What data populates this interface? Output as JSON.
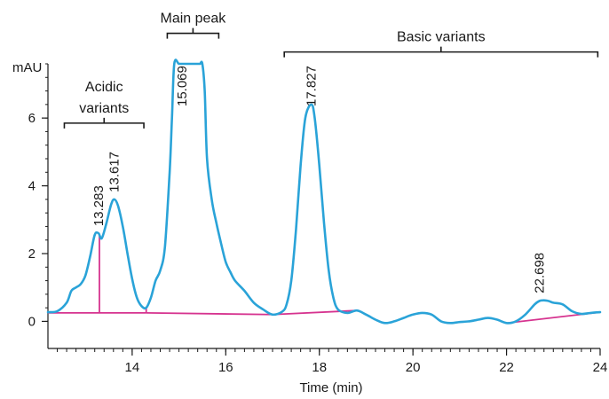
{
  "chart_data": {
    "type": "line",
    "title": "",
    "xlabel": "Time (min)",
    "ylabel": "mAU",
    "xlim": [
      12.2,
      24.0
    ],
    "ylim": [
      -0.8,
      7.6
    ],
    "x_ticks": [
      14,
      16,
      18,
      20,
      22,
      24
    ],
    "y_ticks": [
      0,
      2,
      4,
      6
    ],
    "grid": false,
    "legend": "none",
    "colors": {
      "signal": "#2aa3d8",
      "baseline": "#d6338f",
      "axes": "#1a1a1a",
      "annotations": "#1a1a1a"
    },
    "series": [
      {
        "x": [
          12.2,
          12.4,
          12.6,
          12.7,
          12.8,
          12.9,
          13.0,
          13.1,
          13.2,
          13.28,
          13.35,
          13.45,
          13.55,
          13.62,
          13.7,
          13.8,
          13.9,
          14.0,
          14.1,
          14.2,
          14.3,
          14.4,
          14.5,
          14.6,
          14.7,
          14.8,
          14.85,
          14.9,
          15.0,
          15.1,
          15.2,
          15.3,
          15.4,
          15.45,
          15.5,
          15.55,
          15.6,
          15.7,
          15.8,
          15.9,
          16.0,
          16.1,
          16.2,
          16.4,
          16.6,
          16.8,
          17.0,
          17.2,
          17.3,
          17.4,
          17.5,
          17.6,
          17.7,
          17.83,
          17.9,
          18.0,
          18.1,
          18.2,
          18.3,
          18.4,
          18.6,
          18.8,
          19.0,
          19.2,
          19.4,
          19.6,
          19.8,
          20.0,
          20.2,
          20.4,
          20.6,
          20.8,
          21.0,
          21.2,
          21.4,
          21.6,
          21.8,
          22.0,
          22.2,
          22.4,
          22.6,
          22.7,
          22.8,
          22.9,
          23.0,
          23.2,
          23.4,
          23.6,
          23.8,
          24.0
        ],
        "y": [
          0.27,
          0.3,
          0.55,
          0.9,
          1.0,
          1.1,
          1.35,
          1.9,
          2.55,
          2.6,
          2.45,
          2.9,
          3.45,
          3.6,
          3.4,
          2.8,
          2.0,
          1.25,
          0.7,
          0.45,
          0.4,
          0.7,
          1.2,
          1.5,
          2.2,
          4.4,
          6.0,
          7.6,
          7.6,
          7.6,
          7.6,
          7.6,
          7.6,
          7.6,
          7.6,
          6.8,
          4.8,
          3.6,
          2.9,
          2.3,
          1.75,
          1.45,
          1.2,
          0.9,
          0.55,
          0.35,
          0.2,
          0.28,
          0.5,
          1.2,
          2.7,
          4.6,
          6.0,
          6.4,
          6.0,
          4.6,
          2.9,
          1.5,
          0.7,
          0.35,
          0.25,
          0.32,
          0.2,
          0.05,
          -0.05,
          0.0,
          0.1,
          0.2,
          0.25,
          0.2,
          0.0,
          -0.05,
          -0.02,
          0.0,
          0.05,
          0.1,
          0.05,
          -0.05,
          0.0,
          0.2,
          0.5,
          0.6,
          0.62,
          0.6,
          0.55,
          0.5,
          0.3,
          0.22,
          0.25,
          0.27
        ]
      }
    ],
    "baseline_segments": [
      {
        "x": [
          12.2,
          13.3
        ],
        "y": [
          0.25,
          0.25
        ]
      },
      {
        "x": [
          13.3,
          14.3
        ],
        "y": [
          0.25,
          0.25
        ]
      },
      {
        "x": [
          14.3,
          17.0
        ],
        "y": [
          0.25,
          0.2
        ]
      },
      {
        "x": [
          17.0,
          18.8
        ],
        "y": [
          0.2,
          0.32
        ]
      },
      {
        "x": [
          22.0,
          24.0
        ],
        "y": [
          -0.05,
          0.27
        ]
      }
    ],
    "drop_lines": [
      {
        "x": 13.3,
        "y_top": 2.58
      },
      {
        "x": 14.3,
        "y_top": 0.4
      }
    ],
    "peak_labels": [
      {
        "x": 13.283,
        "y": 2.6,
        "text": "13.283"
      },
      {
        "x": 13.617,
        "y": 3.6,
        "text": "13.617"
      },
      {
        "x": 15.069,
        "y": 7.6,
        "text": "15.069"
      },
      {
        "x": 17.827,
        "y": 6.4,
        "text": "17.827"
      },
      {
        "x": 22.698,
        "y": 0.62,
        "text": "22.698"
      }
    ],
    "region_brackets": [
      {
        "x_start": 12.55,
        "x_end": 14.25,
        "y": 5.85,
        "label_lines": [
          "Acidic",
          "variants"
        ]
      },
      {
        "x_start": 14.75,
        "x_end": 15.85,
        "y": 8.5,
        "label_lines": [
          "Main peak"
        ]
      },
      {
        "x_start": 17.25,
        "x_end": 23.95,
        "y": 7.95,
        "label_lines": [
          "Basic variants"
        ]
      }
    ]
  }
}
